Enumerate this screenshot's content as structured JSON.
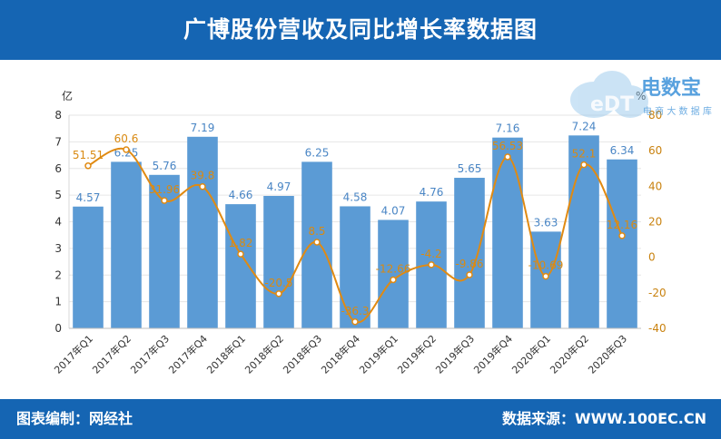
{
  "header": {
    "title": "广博股份营收及同比增长率数据图"
  },
  "footer": {
    "editor": "图表编制：网经社",
    "source": "数据来源：WWW.100EC.CN"
  },
  "logo": {
    "mark": "eDT",
    "name": "电数宝",
    "tagline": "电 商 大 数 据 库"
  },
  "colors": {
    "bar": "#5b9bd5",
    "line": "#e08a12",
    "header": "#1565b3"
  },
  "chart_data": {
    "type": "bar",
    "categories": [
      "2017年Q1",
      "2017年Q2",
      "2017年Q3",
      "2017年Q4",
      "2018年Q1",
      "2018年Q2",
      "2018年Q3",
      "2018年Q4",
      "2019年Q1",
      "2019年Q2",
      "2019年Q3",
      "2019年Q4",
      "2020年Q1",
      "2020年Q2",
      "2020年Q3"
    ],
    "series": [
      {
        "values": [
          4.57,
          6.25,
          5.76,
          7.19,
          4.66,
          4.97,
          6.25,
          4.58,
          4.07,
          4.76,
          5.65,
          7.16,
          3.63,
          7.24,
          6.34
        ],
        "labels": [
          "4.57",
          "6.25",
          "5.76",
          "7.19",
          "4.66",
          "4.97",
          "6.25",
          "4.58",
          "4.07",
          "4.76",
          "5.65",
          "7.16",
          "3.63",
          "7.24",
          "6.34"
        ]
      },
      {
        "values": [
          51.51,
          60.6,
          31.96,
          39.8,
          1.82,
          -20.5,
          8.5,
          -36.3,
          -12.66,
          -4.2,
          -9.86,
          56.53,
          -10.69,
          52.1,
          12.16
        ],
        "labels": [
          "51.51",
          "60.6",
          "31.96",
          "39.8",
          "1.82",
          "-20.5",
          "8.5",
          "-36.3",
          "-12.66",
          "-4.2",
          "-9.86",
          "56.53",
          "-10.69",
          "52.1",
          "12.16"
        ]
      }
    ],
    "ylabel_left": "亿",
    "ylabel_right": "%",
    "ylim_left": [
      0,
      8
    ],
    "yticks_left": [
      0,
      1,
      2,
      3,
      4,
      5,
      6,
      7,
      8
    ],
    "ylim_right": [
      -40,
      80
    ],
    "yticks_right": [
      -40,
      -20,
      0,
      20,
      40,
      60,
      80
    ],
    "grid": true
  }
}
